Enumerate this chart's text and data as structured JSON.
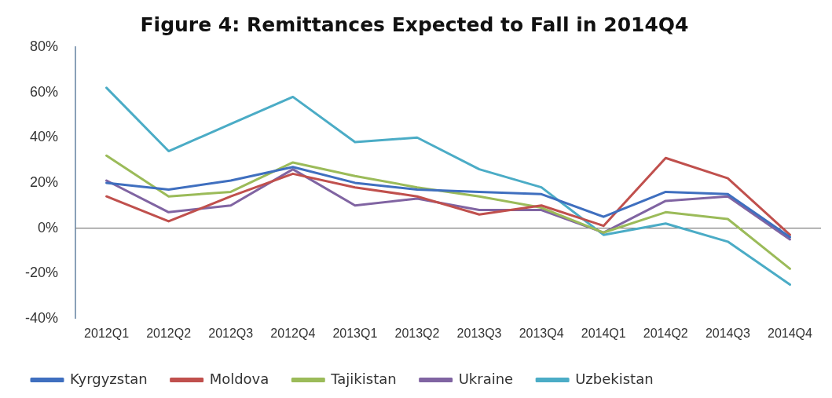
{
  "chart_data": {
    "type": "line",
    "title": "Figure 4: Remittances Expected to Fall in 2014Q4",
    "categories": [
      "2012Q1",
      "2012Q2",
      "2012Q3",
      "2012Q4",
      "2013Q1",
      "2013Q2",
      "2013Q3",
      "2013Q4",
      "2014Q1",
      "2014Q2",
      "2014Q3",
      "2014Q4"
    ],
    "series": [
      {
        "name": "Kyrgyzstan",
        "color": "#3f6fbf",
        "values": [
          20,
          17,
          21,
          27,
          20,
          17,
          16,
          15,
          5,
          16,
          15,
          -4
        ]
      },
      {
        "name": "Moldova",
        "color": "#c0504d",
        "values": [
          14,
          3,
          14,
          24,
          18,
          14,
          6,
          10,
          1,
          31,
          22,
          -3
        ]
      },
      {
        "name": "Tajikistan",
        "color": "#9bbb59",
        "values": [
          32,
          14,
          16,
          29,
          23,
          18,
          14,
          9,
          -2,
          7,
          4,
          -18
        ]
      },
      {
        "name": "Ukraine",
        "color": "#8064a2",
        "values": [
          21,
          7,
          10,
          26,
          10,
          13,
          8,
          8,
          -2,
          12,
          14,
          -5
        ]
      },
      {
        "name": "Uzbekistan",
        "color": "#4bacc6",
        "values": [
          62,
          34,
          46,
          58,
          38,
          40,
          26,
          18,
          -3,
          2,
          -6,
          -25
        ]
      }
    ],
    "ylim": [
      -40,
      80
    ],
    "yticks": [
      {
        "value": -40,
        "label": "-40%"
      },
      {
        "value": -20,
        "label": "-20%"
      },
      {
        "value": 0,
        "label": "0%"
      },
      {
        "value": 20,
        "label": "20%"
      },
      {
        "value": 40,
        "label": "40%"
      },
      {
        "value": 60,
        "label": "60%"
      },
      {
        "value": 80,
        "label": "80%"
      }
    ],
    "ref_lines": [
      {
        "axis": "y",
        "value": 0,
        "color": "#7f7f7f"
      }
    ],
    "grid": false,
    "legend": "bottom",
    "marker": "none",
    "line_style": "solid"
  }
}
